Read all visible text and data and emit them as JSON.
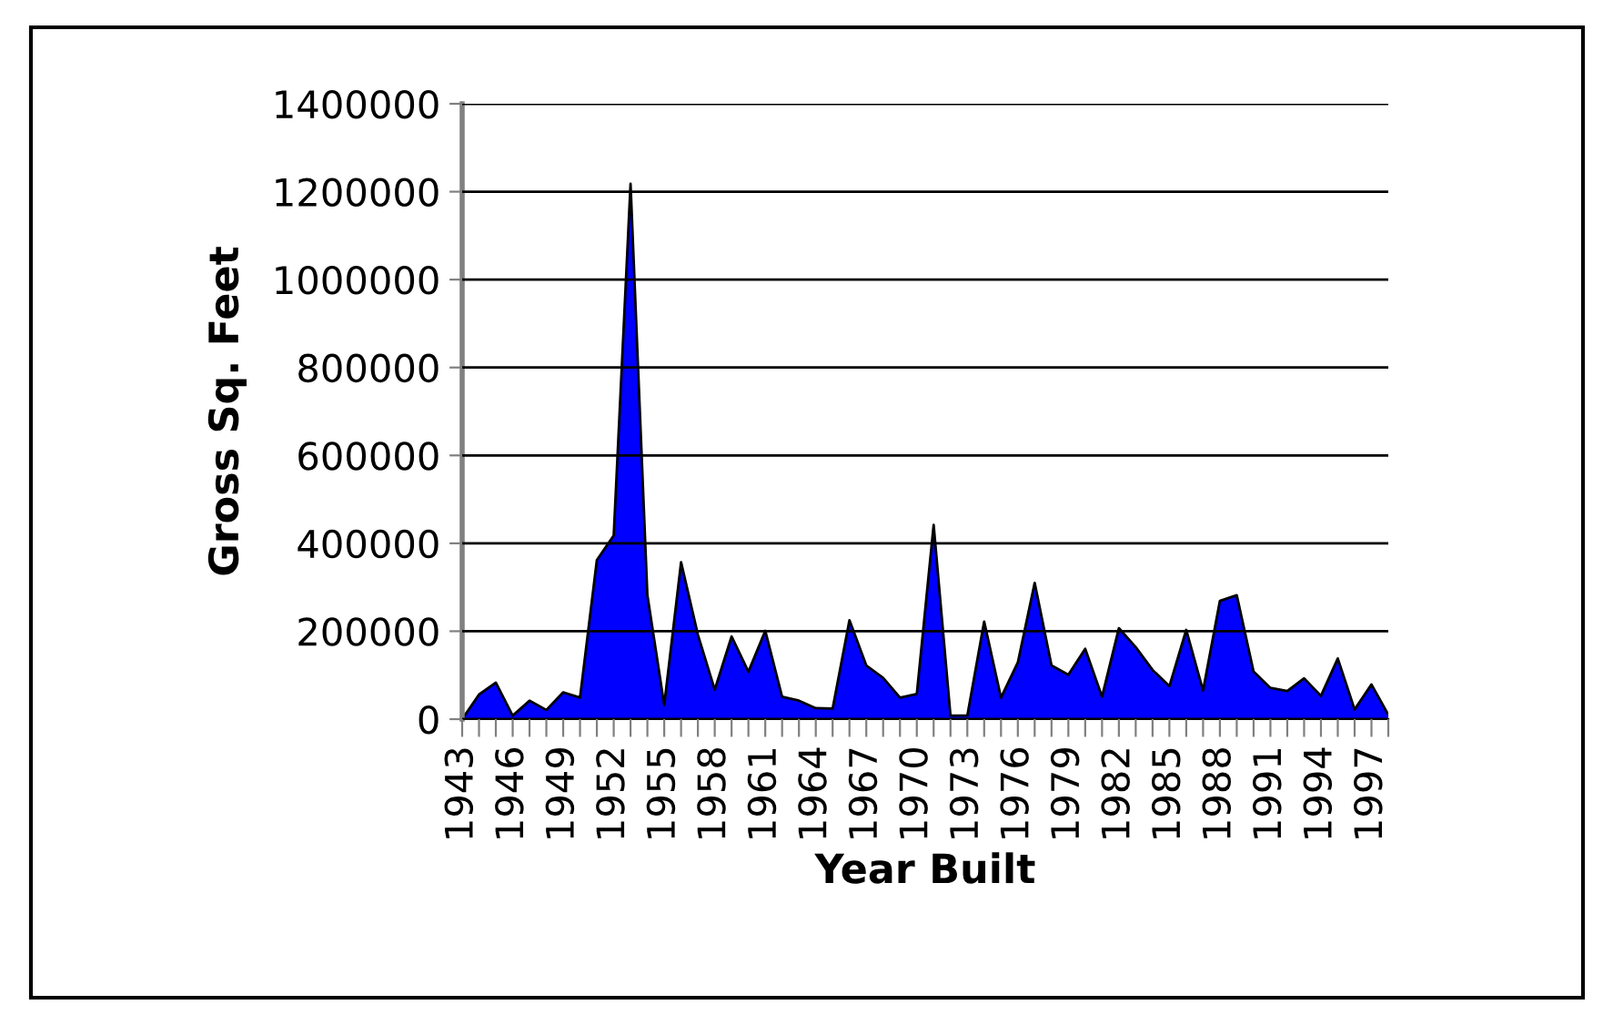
{
  "chart_data": {
    "type": "area",
    "xlabel": "Year Built",
    "ylabel": "Gross Sq. Feet",
    "categories": [
      "1943",
      null,
      null,
      "1946",
      null,
      null,
      "1949",
      null,
      null,
      "1952",
      null,
      null,
      "1955",
      null,
      null,
      "1958",
      null,
      null,
      "1961",
      null,
      null,
      "1964",
      null,
      null,
      "1967",
      null,
      null,
      "1970",
      null,
      null,
      "1973",
      null,
      null,
      "1976",
      null,
      null,
      "1979",
      null,
      null,
      "1982",
      null,
      null,
      "1985",
      null,
      null,
      "1988",
      null,
      null,
      "1991",
      null,
      null,
      "1994",
      null,
      null,
      "1997",
      null
    ],
    "series": [
      {
        "color": "#0000ff",
        "values": [
          0,
          56000,
          83000,
          8000,
          42000,
          21000,
          61000,
          49000,
          362000,
          418000,
          1218000,
          282000,
          32000,
          357000,
          192000,
          67000,
          188000,
          108000,
          201000,
          51000,
          42000,
          25000,
          24000,
          225000,
          122000,
          94000,
          49000,
          57000,
          442000,
          8000,
          8000,
          222000,
          49000,
          129000,
          310000,
          122000,
          101000,
          160000,
          51000,
          207000,
          164000,
          112000,
          75000,
          203000,
          65000,
          269000,
          282000,
          108000,
          71000,
          64000,
          93000,
          53000,
          138000,
          22000,
          79000,
          10000
        ]
      }
    ],
    "ylim": [
      0,
      1400000
    ],
    "yticks": [
      0,
      200000,
      400000,
      600000,
      800000,
      1000000,
      1200000,
      1400000
    ],
    "grid": "y",
    "legend": false
  }
}
